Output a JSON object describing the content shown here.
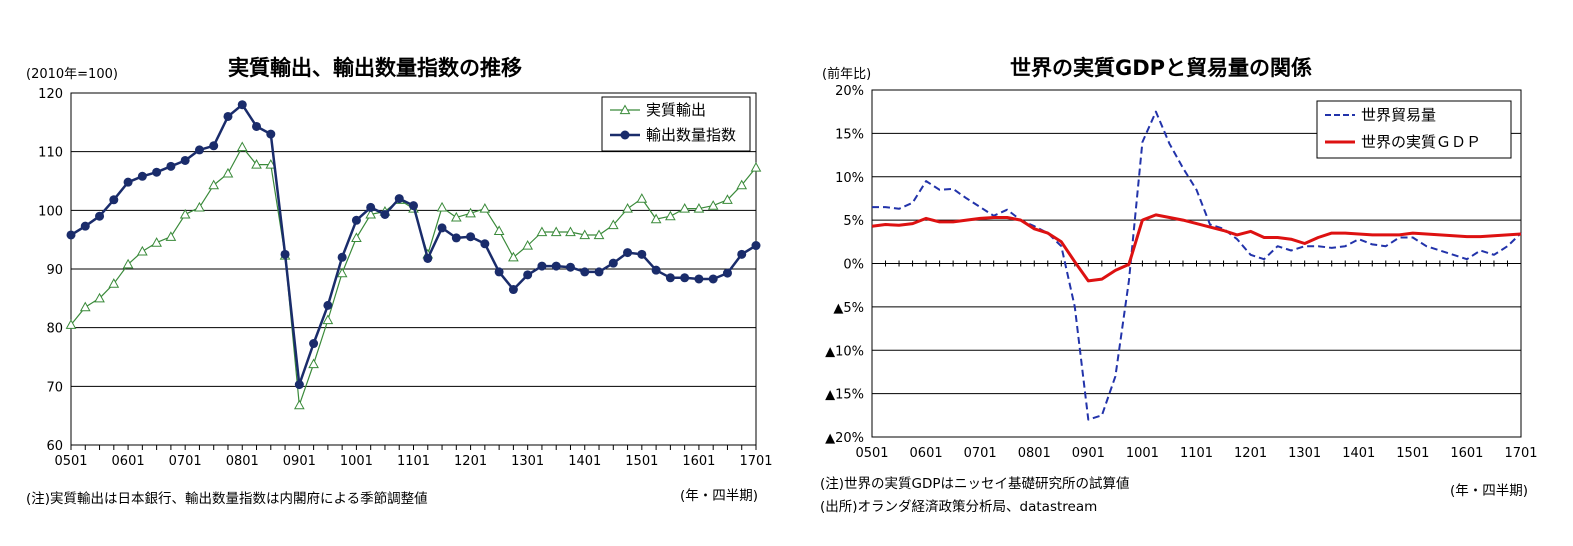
{
  "left": {
    "title": "実質輸出、輸出数量指数の推移",
    "unit_label": "(2010年=100)",
    "footnote": "(注)実質輸出は日本銀行、輸出数量指数は内閣府による季節調整値",
    "period_label": "(年・四半期)"
  },
  "right": {
    "title": "世界の実質GDPと貿易量の関係",
    "unit_label": "(前年比)",
    "footnote": "(注)世界の実質GDPはニッセイ基礎研究所の試算値",
    "source": "(出所)オランダ経済政策分析局、datastream",
    "period_label": "(年・四半期)"
  },
  "chart_data": [
    {
      "type": "line",
      "title": "実質輸出、輸出数量指数の推移",
      "ylabel": "(2010年=100)",
      "xlabel": "(年・四半期)",
      "ylim": [
        60,
        120
      ],
      "yticks": [
        "60",
        "70",
        "80",
        "90",
        "100",
        "110",
        "120"
      ],
      "xtick_labels": [
        "0501",
        "0601",
        "0701",
        "0801",
        "0901",
        "1001",
        "1101",
        "1201",
        "1301",
        "1401",
        "1501",
        "1601",
        "1701"
      ],
      "grid": true,
      "legend_position": "top-right",
      "series": [
        {
          "name": "実質輸出",
          "color": "#3a8a3a",
          "marker": "open-triangle",
          "values": [
            80.5,
            83.5,
            85,
            87.5,
            90.8,
            93,
            94.5,
            95.5,
            99.3,
            100.5,
            104.3,
            106.3,
            110.8,
            107.8,
            107.8,
            92.3,
            66.8,
            73.8,
            81.3,
            89.3,
            95.3,
            99.3,
            99.8,
            101.8,
            100.3,
            92.5,
            100.5,
            98.8,
            99.5,
            100.3,
            96.5,
            92.0,
            94.0,
            96.3,
            96.3,
            96.3,
            95.8,
            95.8,
            97.5,
            100.3,
            102.0,
            98.5,
            99.0,
            100.3,
            100.3,
            100.8,
            101.8,
            104.3,
            107.3
          ]
        },
        {
          "name": "輸出数量指数",
          "color": "#1a2c6b",
          "marker": "filled-circle",
          "values": [
            95.8,
            97.3,
            99.0,
            101.8,
            104.8,
            105.8,
            106.5,
            107.5,
            108.5,
            110.3,
            111.0,
            116.0,
            118.0,
            114.3,
            113.0,
            92.5,
            70.3,
            77.3,
            83.8,
            92.0,
            98.3,
            100.5,
            99.3,
            102.0,
            100.8,
            91.8,
            97.0,
            95.3,
            95.5,
            94.3,
            89.5,
            86.5,
            89.0,
            90.5,
            90.5,
            90.3,
            89.5,
            89.5,
            91.0,
            92.8,
            92.5,
            89.8,
            88.5,
            88.5,
            88.3,
            88.3,
            89.3,
            92.5,
            94.0
          ]
        }
      ]
    },
    {
      "type": "line",
      "title": "世界の実質GDPと貿易量の関係",
      "ylabel": "(前年比)",
      "xlabel": "(年・四半期)",
      "ylim": [
        -20,
        20
      ],
      "yticks": [
        "20%",
        "15%",
        "10%",
        "5%",
        "0%",
        "▲5%",
        "▲10%",
        "▲15%",
        "▲20%"
      ],
      "xtick_labels": [
        "0501",
        "0601",
        "0701",
        "0801",
        "0901",
        "1001",
        "1101",
        "1201",
        "1301",
        "1401",
        "1501",
        "1601",
        "1701"
      ],
      "grid": true,
      "legend_position": "top-right",
      "series": [
        {
          "name": "世界貿易量",
          "color": "#2233aa",
          "dashed": true,
          "values": [
            6.5,
            6.5,
            6.3,
            7.0,
            9.5,
            8.5,
            8.6,
            7.5,
            6.5,
            5.5,
            6.2,
            5.0,
            4.3,
            3.5,
            2.0,
            -5.0,
            -18.0,
            -17.5,
            -13.0,
            -2.0,
            14.0,
            17.5,
            13.8,
            11.0,
            8.5,
            4.5,
            4.0,
            2.8,
            1.0,
            0.5,
            2.0,
            1.5,
            2.0,
            2.0,
            1.8,
            2.0,
            2.8,
            2.2,
            2.0,
            3.0,
            3.0,
            2.0,
            1.5,
            1.0,
            0.5,
            1.5,
            1.0,
            2.0,
            3.5
          ]
        },
        {
          "name": "世界の実質ＧＤＰ",
          "color": "#dd1111",
          "dashed": false,
          "values": [
            4.3,
            4.5,
            4.4,
            4.6,
            5.2,
            4.8,
            4.8,
            5.0,
            5.2,
            5.3,
            5.3,
            5.0,
            4.0,
            3.5,
            2.5,
            0.2,
            -2.0,
            -1.8,
            -0.8,
            -0.1,
            5.0,
            5.6,
            5.3,
            5.0,
            4.6,
            4.2,
            3.8,
            3.3,
            3.7,
            3.0,
            3.0,
            2.8,
            2.3,
            3.0,
            3.5,
            3.5,
            3.4,
            3.3,
            3.3,
            3.3,
            3.5,
            3.4,
            3.3,
            3.2,
            3.1,
            3.1,
            3.2,
            3.3,
            3.4
          ]
        }
      ]
    }
  ]
}
